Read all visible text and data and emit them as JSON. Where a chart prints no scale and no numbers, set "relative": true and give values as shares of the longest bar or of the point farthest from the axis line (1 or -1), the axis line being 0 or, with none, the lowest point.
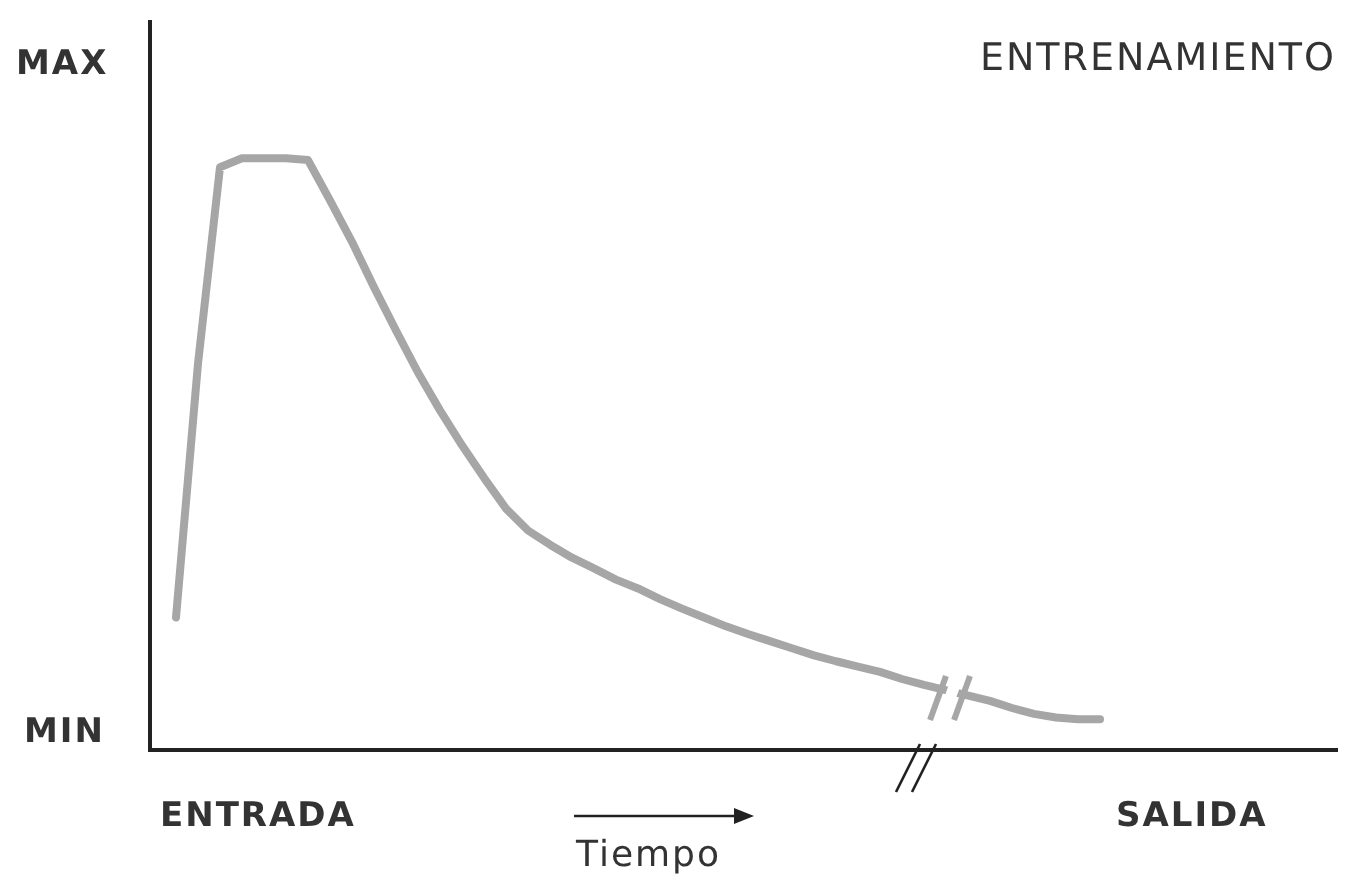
{
  "chart_data": {
    "type": "line",
    "relative": true,
    "title": "ENTRENAMIENTO",
    "xlabel": "Tiempo",
    "annotations": [
      "MAX",
      "MIN",
      "ENTRADA",
      "SALIDA"
    ],
    "categories": [
      null,
      null,
      null,
      null,
      null,
      null,
      null,
      null,
      null,
      null,
      null,
      null,
      null,
      null,
      null,
      null,
      null,
      null,
      null,
      null,
      null,
      null,
      null,
      null,
      null,
      null,
      null,
      null,
      null,
      null,
      null,
      null,
      null,
      null,
      null,
      null,
      null,
      null,
      null,
      null,
      null,
      null,
      null
    ],
    "series": [
      {
        "color": "#a6a6a6",
        "values": [
          0.224,
          0.653,
          0.985,
          1,
          1,
          1,
          0.997,
          0.929,
          0.859,
          0.782,
          0.709,
          0.638,
          0.574,
          0.515,
          0.46,
          0.408,
          0.371,
          0.347,
          0.325,
          0.307,
          0.288,
          0.273,
          0.255,
          0.239,
          0.224,
          0.209,
          0.196,
          0.184,
          0.172,
          0.16,
          0.15,
          0.141,
          0.132,
          0.12,
          0.11,
          null,
          null,
          0.083,
          0.071,
          0.061,
          0.055,
          0.052,
          0.052
        ]
      }
    ],
    "grid": false,
    "legend": false,
    "marker": "none",
    "line_style": "solid"
  }
}
